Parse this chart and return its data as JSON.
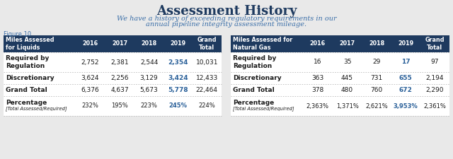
{
  "title": "Assessment History",
  "subtitle_line1": "We have a history of exceeding regulatory requirements in our",
  "subtitle_line2": "annual pipeline integrity assessment mileage.",
  "figure_label": "Figure 10",
  "bg_color": "#e9e9e9",
  "header_color": "#1e3a5f",
  "header_text_color": "#ffffff",
  "body_text_color": "#1a1a1a",
  "highlight_color": "#2a6099",
  "title_color": "#1e3a5f",
  "subtitle_color": "#3a6ea8",
  "figure_label_color": "#3a6ea8",
  "sep_color": "#bbbbbb",
  "table1": {
    "header": [
      "Miles Assessed\nfor Liquids",
      "2016",
      "2017",
      "2018",
      "2019",
      "Grand\nTotal"
    ],
    "rows": [
      [
        "Required by\nRegulation",
        "2,752",
        "2,381",
        "2,544",
        "2,354",
        "10,031"
      ],
      [
        "Discretionary",
        "3,624",
        "2,256",
        "3,129",
        "3,424",
        "12,433"
      ],
      [
        "Grand Total",
        "6,376",
        "4,637",
        "5,673",
        "5,778",
        "22,464"
      ],
      [
        "Percentage",
        "[Total Assessed/Required]",
        "232%",
        "195%",
        "223%",
        "245%",
        "224%"
      ]
    ],
    "highlight_col": 4
  },
  "table2": {
    "header": [
      "Miles Assessed for\nNatural Gas",
      "2016",
      "2017",
      "2018",
      "2019",
      "Grand\nTotal"
    ],
    "rows": [
      [
        "Required by\nRegulation",
        "16",
        "35",
        "29",
        "17",
        "97"
      ],
      [
        "Discretionary",
        "363",
        "445",
        "731",
        "655",
        "2,194"
      ],
      [
        "Grand Total",
        "378",
        "480",
        "760",
        "672",
        "2,290"
      ],
      [
        "Percentage",
        "[Total Assessed/Required]",
        "2,363%",
        "1,371%",
        "2,621%",
        "3,953%",
        "2,361%"
      ]
    ],
    "highlight_col": 4
  }
}
